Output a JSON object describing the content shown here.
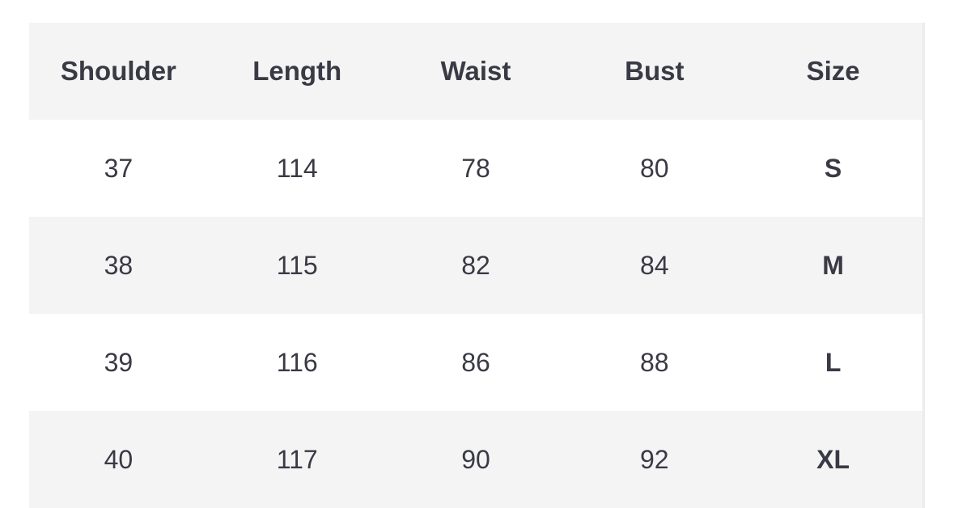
{
  "table": {
    "headers": [
      "Shoulder",
      "Length",
      "Waist",
      "Bust",
      "Size"
    ],
    "rows": [
      [
        "37",
        "114",
        "78",
        "80",
        "S"
      ],
      [
        "38",
        "115",
        "82",
        "84",
        "M"
      ],
      [
        "39",
        "116",
        "86",
        "88",
        "L"
      ],
      [
        "40",
        "117",
        "90",
        "92",
        "XL"
      ]
    ]
  },
  "colors": {
    "text": "#3a3a45",
    "stripe": "#f4f4f5"
  }
}
